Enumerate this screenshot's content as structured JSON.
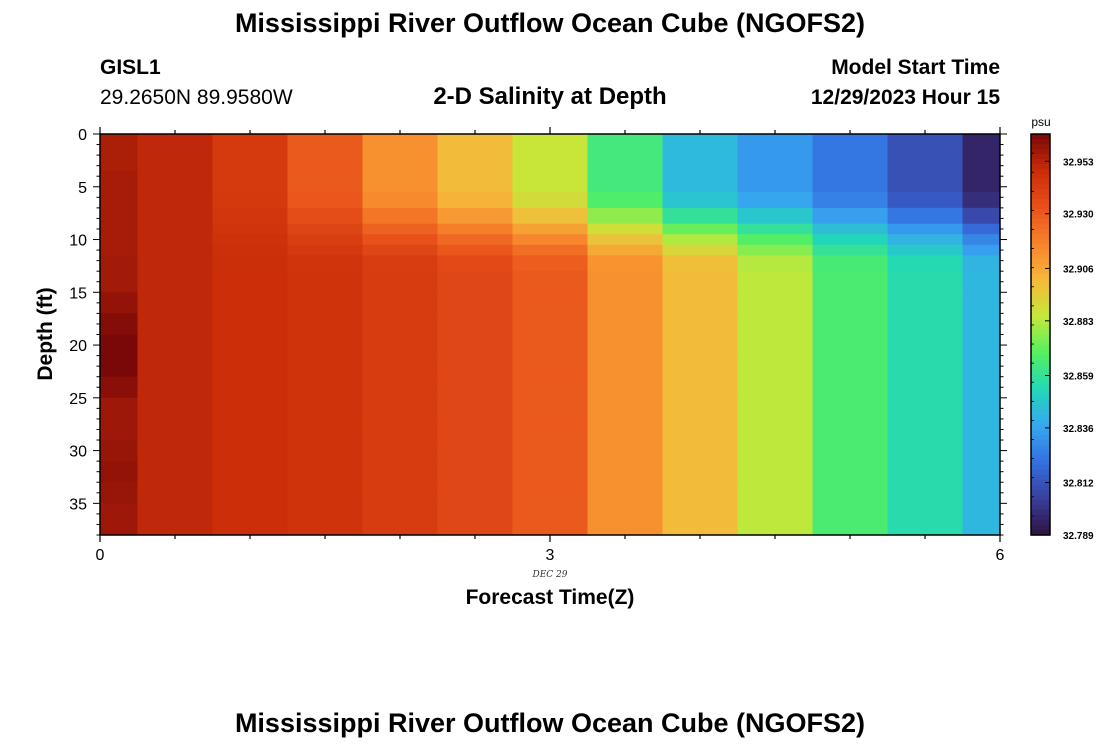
{
  "header": {
    "title": "Mississippi River Outflow Ocean Cube (NGOFS2)",
    "station_id": "GISL1",
    "station_coords": "29.2650N  89.9580W",
    "plot_title": "2-D Salinity at Depth",
    "model_start_label": "Model Start Time",
    "model_start_value": "12/29/2023 Hour 15"
  },
  "footer": {
    "title": "Mississippi River Outflow Ocean Cube (NGOFS2)"
  },
  "chart_data": {
    "type": "heatmap",
    "title": "2-D Salinity at Depth",
    "xlabel": "Forecast Time(Z)",
    "ylabel": "Depth (ft)",
    "x_sublabel": "DEC 29",
    "xlim": [
      0,
      6
    ],
    "ylim": [
      0,
      38
    ],
    "y_inverted": true,
    "x_ticks": [
      0,
      3,
      6
    ],
    "x_tick_labels": [
      "0",
      "3",
      "6"
    ],
    "y_ticks": [
      0,
      5,
      10,
      15,
      20,
      25,
      30,
      35
    ],
    "y_tick_labels": [
      "0",
      "5",
      "10",
      "15",
      "20",
      "25",
      "30",
      "35"
    ],
    "colorbar": {
      "unit": "psu",
      "min": 32.789,
      "max": 32.965,
      "tick_values": [
        32.953,
        32.93,
        32.906,
        32.883,
        32.859,
        32.836,
        32.812,
        32.789
      ],
      "tick_labels": [
        "32.953",
        "32.930",
        "32.906",
        "32.883",
        "32.859",
        "32.836",
        "32.812",
        "32.789"
      ],
      "colors": [
        "#2d1240",
        "#3a3e9c",
        "#3570e0",
        "#36a8f0",
        "#22d8b8",
        "#55f060",
        "#c5e83a",
        "#f6b83a",
        "#f7832b",
        "#e8501a",
        "#c92c08",
        "#7a0808"
      ]
    },
    "column_x_edges": [
      0,
      0.25,
      0.75,
      1.25,
      1.75,
      2.25,
      2.75,
      3.25,
      3.75,
      4.25,
      4.75,
      5.25,
      5.75,
      6.0
    ],
    "layer_depth_edges": [
      0,
      1.5,
      3.5,
      5.5,
      7.0,
      8.5,
      9.5,
      10.5,
      11.5,
      13.0,
      15.0,
      17.0,
      19.0,
      21.0,
      23.0,
      25.0,
      27.0,
      29.0,
      31.0,
      33.0,
      35.0,
      38.0
    ],
    "columns": [
      {
        "x_center": 0.0,
        "surface_value": 32.958,
        "deep_value": 32.958
      },
      {
        "x_center": 0.5,
        "surface_value": 32.951,
        "deep_value": 32.951
      },
      {
        "x_center": 1.0,
        "surface_value": 32.943,
        "deep_value": 32.948
      },
      {
        "x_center": 1.5,
        "surface_value": 32.93,
        "deep_value": 32.946
      },
      {
        "x_center": 2.0,
        "surface_value": 32.913,
        "deep_value": 32.942
      },
      {
        "x_center": 2.5,
        "surface_value": 32.9,
        "deep_value": 32.937
      },
      {
        "x_center": 3.0,
        "surface_value": 32.886,
        "deep_value": 32.93
      },
      {
        "x_center": 3.5,
        "surface_value": 32.864,
        "deep_value": 32.913
      },
      {
        "x_center": 4.0,
        "surface_value": 32.843,
        "deep_value": 32.9
      },
      {
        "x_center": 4.5,
        "surface_value": 32.833,
        "deep_value": 32.884
      },
      {
        "x_center": 5.0,
        "surface_value": 32.823,
        "deep_value": 32.866
      },
      {
        "x_center": 5.5,
        "surface_value": 32.811,
        "deep_value": 32.855
      },
      {
        "x_center": 6.0,
        "surface_value": 32.796,
        "deep_value": 32.842
      }
    ],
    "first_column_profile": [
      32.955,
      32.955,
      32.956,
      32.956,
      32.956,
      32.956,
      32.956,
      32.956,
      32.957,
      32.957,
      32.96,
      32.963,
      32.965,
      32.965,
      32.962,
      32.958,
      32.958,
      32.959,
      32.96,
      32.959,
      32.958
    ],
    "transition_depth_range": [
      5,
      13
    ]
  }
}
